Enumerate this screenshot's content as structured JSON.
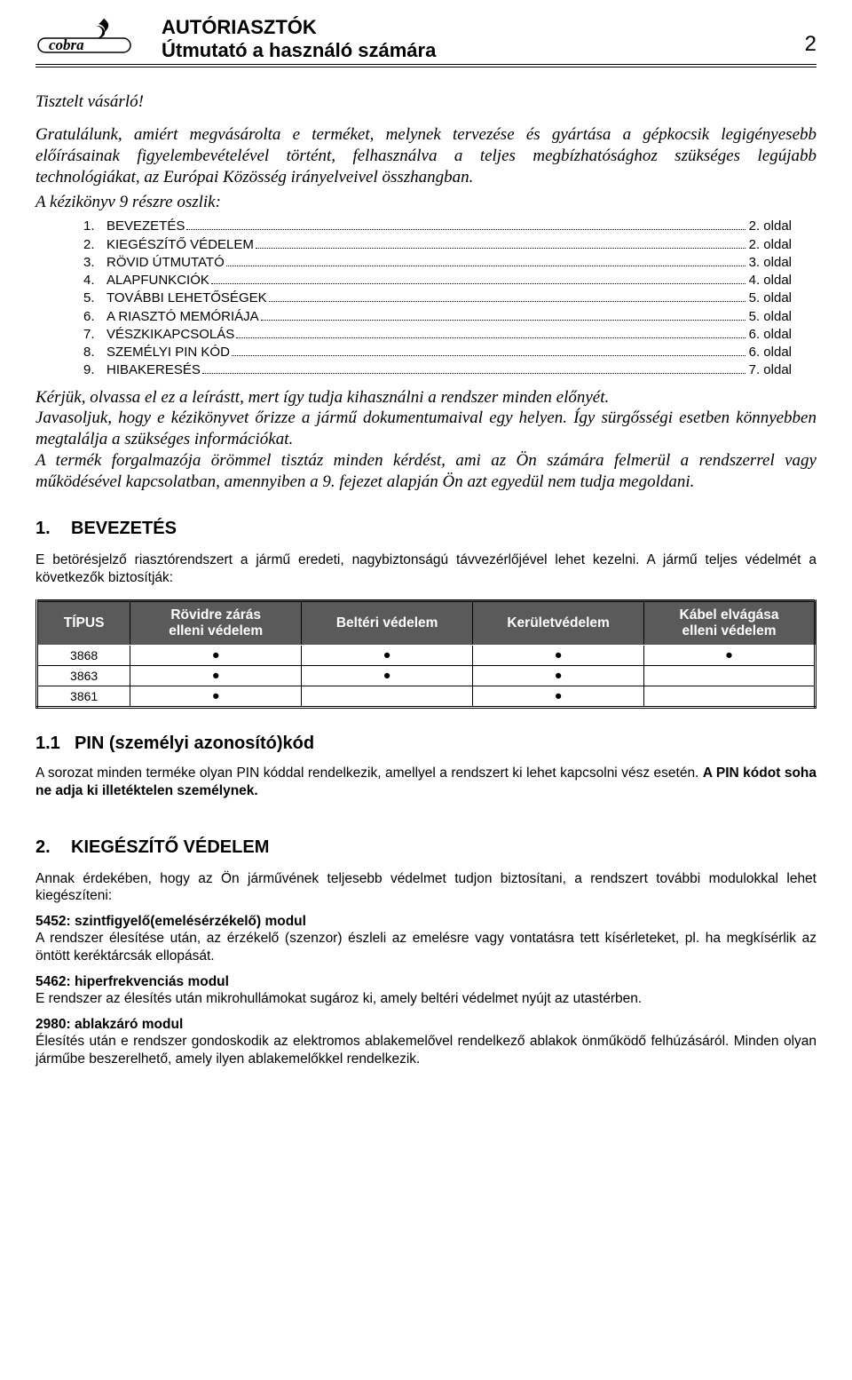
{
  "header": {
    "line1": "AUTÓRIASZTÓK",
    "line2": "Útmutató a használó számára",
    "page_number": "2",
    "logo_text": "cobra"
  },
  "greeting": "Tisztelt vásárló!",
  "intro": "Gratulálunk, amiért megvásárolta e terméket, melynek tervezése és gyártása a gépkocsik legigényesebb előírásainak figyelembevételével történt, felhasználva a teljes megbízhatósághoz szükséges legújabb technológiákat, az Európai Közösség irányelveivel összhangban.",
  "chapters_intro": "A kézikönyv 9 részre oszlik:",
  "toc": [
    {
      "n": "1.",
      "title": "BEVEZETÉS",
      "page": "2. oldal"
    },
    {
      "n": "2.",
      "title": "KIEGÉSZÍTŐ VÉDELEM",
      "page": "2. oldal"
    },
    {
      "n": "3.",
      "title": "RÖVID ÚTMUTATÓ",
      "page": "3. oldal"
    },
    {
      "n": "4.",
      "title": "ALAPFUNKCIÓK",
      "page": "4. oldal"
    },
    {
      "n": "5.",
      "title": "TOVÁBBI LEHETŐSÉGEK",
      "page": "5. oldal"
    },
    {
      "n": "6.",
      "title": "A RIASZTÓ MEMÓRIÁJA",
      "page": "5. oldal"
    },
    {
      "n": "7.",
      "title": "VÉSZKIKAPCSOLÁS",
      "page": "6. oldal"
    },
    {
      "n": "8.",
      "title": "SZEMÉLYI PIN KÓD",
      "page": "6. oldal"
    },
    {
      "n": "9.",
      "title": "HIBAKERESÉS",
      "page": "7. oldal"
    }
  ],
  "after_toc_p1": "Kérjük, olvassa el ez a leírástt, mert így tudja kihasználni a rendszer minden előnyét.",
  "after_toc_p2": "Javasoljuk, hogy e kézikönyvet őrizze a jármű dokumentumaival egy helyen. Így sürgősségi esetben könnyebben megtalálja a szükséges információkat.",
  "after_toc_p3": "A termék forgalmazója örömmel tisztáz minden kérdést, ami az Ön számára felmerül a rendszerrel vagy működésével kapcsolatban, amennyiben a 9. fejezet alapján Ön azt egyedül nem tudja megoldani.",
  "sec1": {
    "num": "1.",
    "title": "BEVEZETÉS",
    "intro": "E betörésjelző riasztórendszert a jármű eredeti, nagybiztonságú távvezérlőjével lehet kezelni. A jármű teljes védelmét a következők biztosítják:",
    "table": {
      "columns": [
        "TÍPUS",
        "Rövidre zárás elleni védelem",
        "Beltéri védelem",
        "Kerületvédelem",
        "Kábel elvágása elleni védelem"
      ],
      "header_bg": "#5a5a5a",
      "rows": [
        {
          "type": "3868",
          "cells": [
            true,
            true,
            true,
            true
          ]
        },
        {
          "type": "3863",
          "cells": [
            true,
            true,
            true,
            false
          ]
        },
        {
          "type": "3861",
          "cells": [
            true,
            false,
            true,
            false
          ]
        }
      ],
      "col_widths": [
        "12%",
        "22%",
        "22%",
        "22%",
        "22%"
      ]
    }
  },
  "sec1_1": {
    "num": "1.1",
    "title": "PIN (személyi azonosító)kód",
    "body_prefix": "A  sorozat minden terméke olyan PIN kóddal rendelkezik, amellyel a rendszert ki lehet kapcsolni vész esetén. ",
    "body_bold": "A PIN kódot soha ne adja ki illetéktelen személynek."
  },
  "sec2": {
    "num": "2.",
    "title": "KIEGÉSZÍTŐ VÉDELEM",
    "intro": "Annak érdekében, hogy az Ön járművének teljesebb védelmet tudjon biztosítani, a rendszert további modulokkal lehet kiegészíteni:",
    "modules": [
      {
        "title": "5452: szintfigyelő(emelésérzékelő) modul",
        "body": "A rendszer élesítése után, az érzékelő (szenzor) észleli az emelésre vagy vontatásra tett kísérleteket, pl. ha megkísérlik az öntött keréktárcsák ellopását."
      },
      {
        "title": "5462: hiperfrekvenciás modul",
        "body": "E rendszer az élesítés után mikrohullámokat sugároz ki, amely beltéri védelmet nyújt az utastérben."
      },
      {
        "title": "2980: ablakzáró modul",
        "body": "Élesítés után e rendszer gondoskodik az elektromos ablakemelővel rendelkező ablakok önműködő felhúzásáról. Minden olyan járműbe beszerelhető, amely ilyen ablakemelőkkel rendelkezik."
      }
    ]
  }
}
